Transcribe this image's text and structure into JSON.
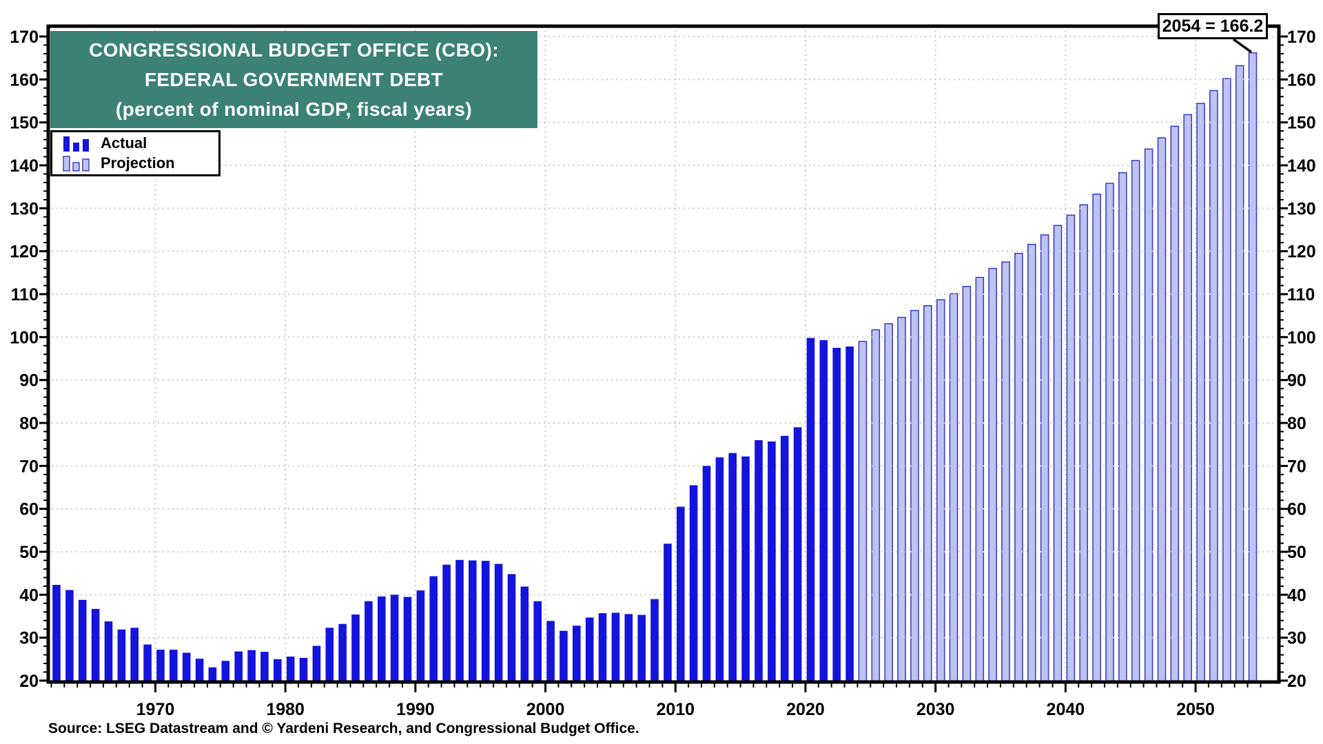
{
  "title": {
    "line1": "CONGRESSIONAL BUDGET OFFICE (CBO):",
    "line2": "FEDERAL GOVERNMENT DEBT",
    "line3": "(percent of nominal GDP, fiscal years)"
  },
  "legend": {
    "items": [
      {
        "label": "Actual",
        "type": "actual"
      },
      {
        "label": "Projection",
        "type": "projection"
      }
    ]
  },
  "annotation": {
    "text": "2054 = 166.2",
    "year": 2054,
    "value": 166.2
  },
  "source_line": "Source: LSEG Datastream and © Yardeni Research, and Congressional Budget Office.",
  "colors": {
    "title_box_bg": "#3b8274",
    "title_text": "#ffffff",
    "actual_bar": "#1414dd",
    "projection_fill": "#bdc4f2",
    "projection_stroke": "#4040bf",
    "gridline": "#cbcbcb",
    "axis": "#000000",
    "background": "#ffffff"
  },
  "chart_data": {
    "type": "bar",
    "title": "Congressional Budget Office (CBO): Federal Government Debt",
    "subtitle": "percent of nominal GDP, fiscal years",
    "ylabel": "",
    "xlabel": "",
    "ylim": [
      20,
      170
    ],
    "y_tick_interval": 10,
    "y_minor_tick_interval": 2,
    "y_tick_labels": [
      "20",
      "30",
      "40",
      "50",
      "60",
      "70",
      "80",
      "90",
      "100",
      "110",
      "120",
      "130",
      "140",
      "150",
      "160",
      "170"
    ],
    "x_tick_labels": [
      "1970",
      "1980",
      "1990",
      "2000",
      "2010",
      "2020",
      "2030",
      "2040",
      "2050"
    ],
    "grid": "dotted",
    "legend_position": "top-left",
    "series": [
      {
        "name": "Actual",
        "start_year": 1962,
        "end_year": 2023,
        "values": [
          42.3,
          41.1,
          38.8,
          36.7,
          33.8,
          31.9,
          32.3,
          28.4,
          27.2,
          27.2,
          26.5,
          25.1,
          23.1,
          24.6,
          26.8,
          27.1,
          26.7,
          25.0,
          25.6,
          25.3,
          28.1,
          32.3,
          33.2,
          35.4,
          38.5,
          39.6,
          40.0,
          39.5,
          41.0,
          44.3,
          47.0,
          48.1,
          48.0,
          47.9,
          47.2,
          44.8,
          41.9,
          38.5,
          33.9,
          31.6,
          32.8,
          34.7,
          35.7,
          35.8,
          35.5,
          35.3,
          39.0,
          51.9,
          60.5,
          65.5,
          70.0,
          72.0,
          73.0,
          72.2,
          76.0,
          75.7,
          77.0,
          79.0,
          99.8,
          99.3,
          97.5,
          97.8
        ]
      },
      {
        "name": "Projection",
        "start_year": 2024,
        "end_year": 2054,
        "values": [
          99.0,
          101.7,
          103.1,
          104.6,
          106.2,
          107.3,
          108.7,
          110.1,
          111.8,
          113.9,
          116.0,
          117.5,
          119.5,
          121.6,
          123.8,
          126.0,
          128.4,
          130.8,
          133.3,
          135.8,
          138.3,
          141.1,
          143.8,
          146.4,
          149.1,
          151.8,
          154.4,
          157.4,
          160.2,
          163.2,
          166.2
        ]
      }
    ],
    "annotation": {
      "label": "2054 = 166.2",
      "year": 2054,
      "value": 166.2
    }
  }
}
